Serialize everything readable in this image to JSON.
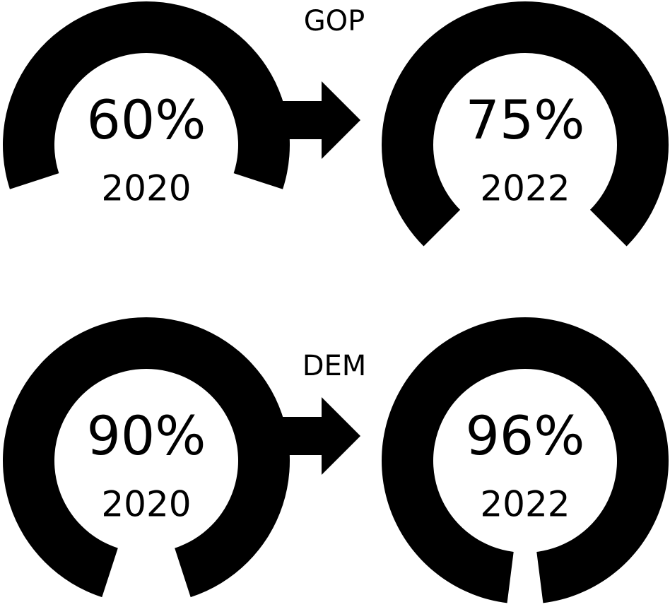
{
  "chart_data": [
    {
      "type": "gauge",
      "title": "GOP",
      "categories": [
        "2020",
        "2022"
      ],
      "values": [
        60,
        75
      ],
      "value_labels": [
        "60%",
        "75%"
      ],
      "color": "#000000"
    },
    {
      "type": "gauge",
      "title": "DEM",
      "categories": [
        "2020",
        "2022"
      ],
      "values": [
        90,
        96
      ],
      "value_labels": [
        "90%",
        "96%"
      ],
      "color": "#000000"
    }
  ]
}
